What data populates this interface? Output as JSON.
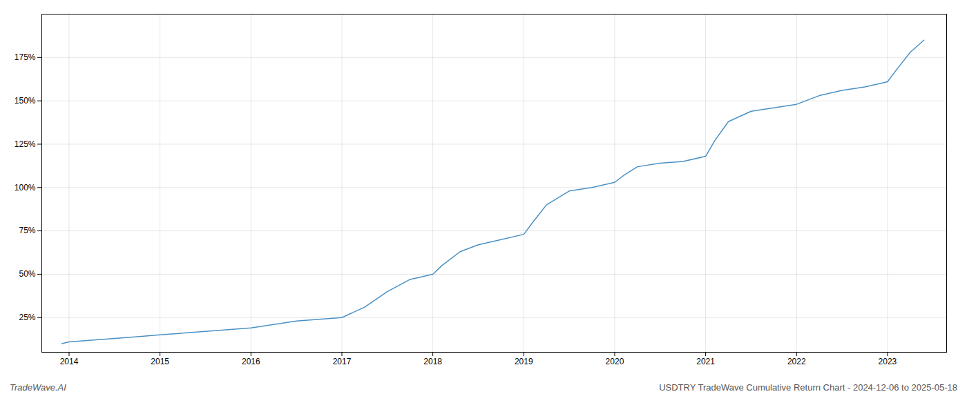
{
  "chart_data": {
    "type": "line",
    "title": "USDTRY TradeWave Cumulative Return Chart - 2024-12-06 to 2025-05-18",
    "annotations": [
      "TradeWave.AI"
    ],
    "color": "#4a90c4",
    "grid": true,
    "x": [
      2013.92,
      2014.0,
      2014.25,
      2014.5,
      2014.75,
      2015.0,
      2015.25,
      2015.5,
      2015.75,
      2016.0,
      2016.25,
      2016.5,
      2016.75,
      2017.0,
      2017.25,
      2017.5,
      2017.75,
      2018.0,
      2018.1,
      2018.3,
      2018.5,
      2018.75,
      2019.0,
      2019.1,
      2019.25,
      2019.5,
      2019.75,
      2020.0,
      2020.1,
      2020.25,
      2020.5,
      2020.75,
      2021.0,
      2021.1,
      2021.25,
      2021.5,
      2021.75,
      2022.0,
      2022.25,
      2022.5,
      2022.75,
      2023.0,
      2023.1,
      2023.25,
      2023.4
    ],
    "values": [
      10,
      11,
      12,
      13,
      14,
      15,
      16,
      17,
      18,
      19,
      21,
      23,
      24,
      25,
      31,
      40,
      47,
      50,
      55,
      63,
      67,
      70,
      73,
      80,
      90,
      98,
      100,
      103,
      107,
      112,
      114,
      115,
      118,
      127,
      138,
      144,
      146,
      148,
      153,
      156,
      158,
      161,
      168,
      178,
      185
    ],
    "xlim": [
      2013.7,
      2023.65
    ],
    "xticks": [
      2014,
      2015,
      2016,
      2017,
      2018,
      2019,
      2020,
      2021,
      2022,
      2023
    ],
    "ylim": [
      5,
      200
    ],
    "yticks": [
      {
        "value": 25,
        "label": "25%"
      },
      {
        "value": 50,
        "label": "50%"
      },
      {
        "value": 75,
        "label": "75%"
      },
      {
        "value": 100,
        "label": "100%"
      },
      {
        "value": 125,
        "label": "125%"
      },
      {
        "value": 150,
        "label": "150%"
      },
      {
        "value": 175,
        "label": "175%"
      }
    ]
  }
}
